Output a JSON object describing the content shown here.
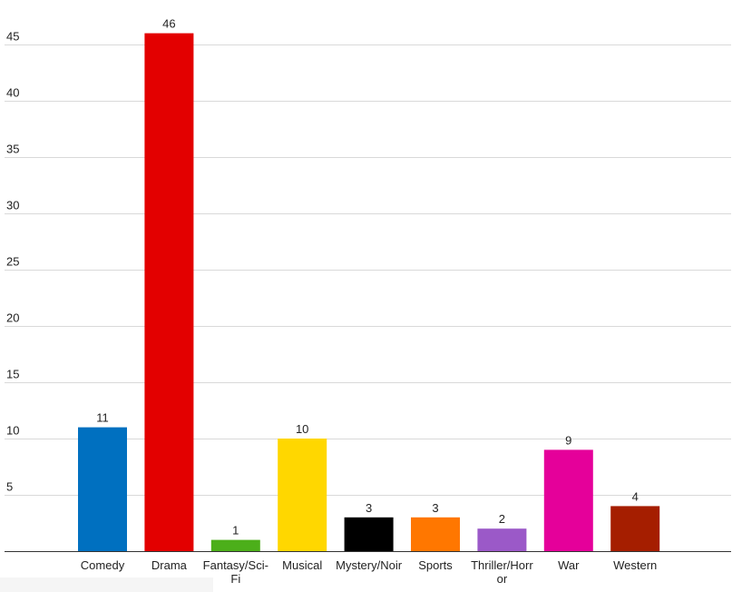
{
  "chart_data": {
    "type": "bar",
    "categories": [
      "Comedy",
      "Drama",
      "Fantasy/Sci-Fi",
      "Musical",
      "Mystery/Noir",
      "Sports",
      "Thriller/Horror",
      "War",
      "Western"
    ],
    "category_label_lines": [
      [
        "Comedy"
      ],
      [
        "Drama"
      ],
      [
        "Fantasy/Sci-",
        "Fi"
      ],
      [
        "Musical"
      ],
      [
        "Mystery/Noir"
      ],
      [
        "Sports"
      ],
      [
        "Thriller/Horr",
        "or"
      ],
      [
        "War"
      ],
      [
        "Western"
      ]
    ],
    "values": [
      11,
      46,
      1,
      10,
      3,
      3,
      2,
      9,
      4
    ],
    "data_labels": [
      "11",
      "46",
      "1",
      "10",
      "3",
      "3",
      "2",
      "9",
      "4"
    ],
    "colors": [
      "#0070c0",
      "#e30000",
      "#4caf1a",
      "#ffd700",
      "#000000",
      "#ff7700",
      "#9b59c8",
      "#e5009a",
      "#a51e00"
    ],
    "yticks": [
      5,
      10,
      15,
      20,
      25,
      30,
      35,
      40,
      45
    ],
    "ytick_labels": [
      "5",
      "10",
      "15",
      "20",
      "25",
      "30",
      "35",
      "40",
      "45"
    ],
    "ylim": [
      0,
      46
    ],
    "title": "",
    "xlabel": "",
    "ylabel": "",
    "grid": true,
    "legend": "none"
  }
}
